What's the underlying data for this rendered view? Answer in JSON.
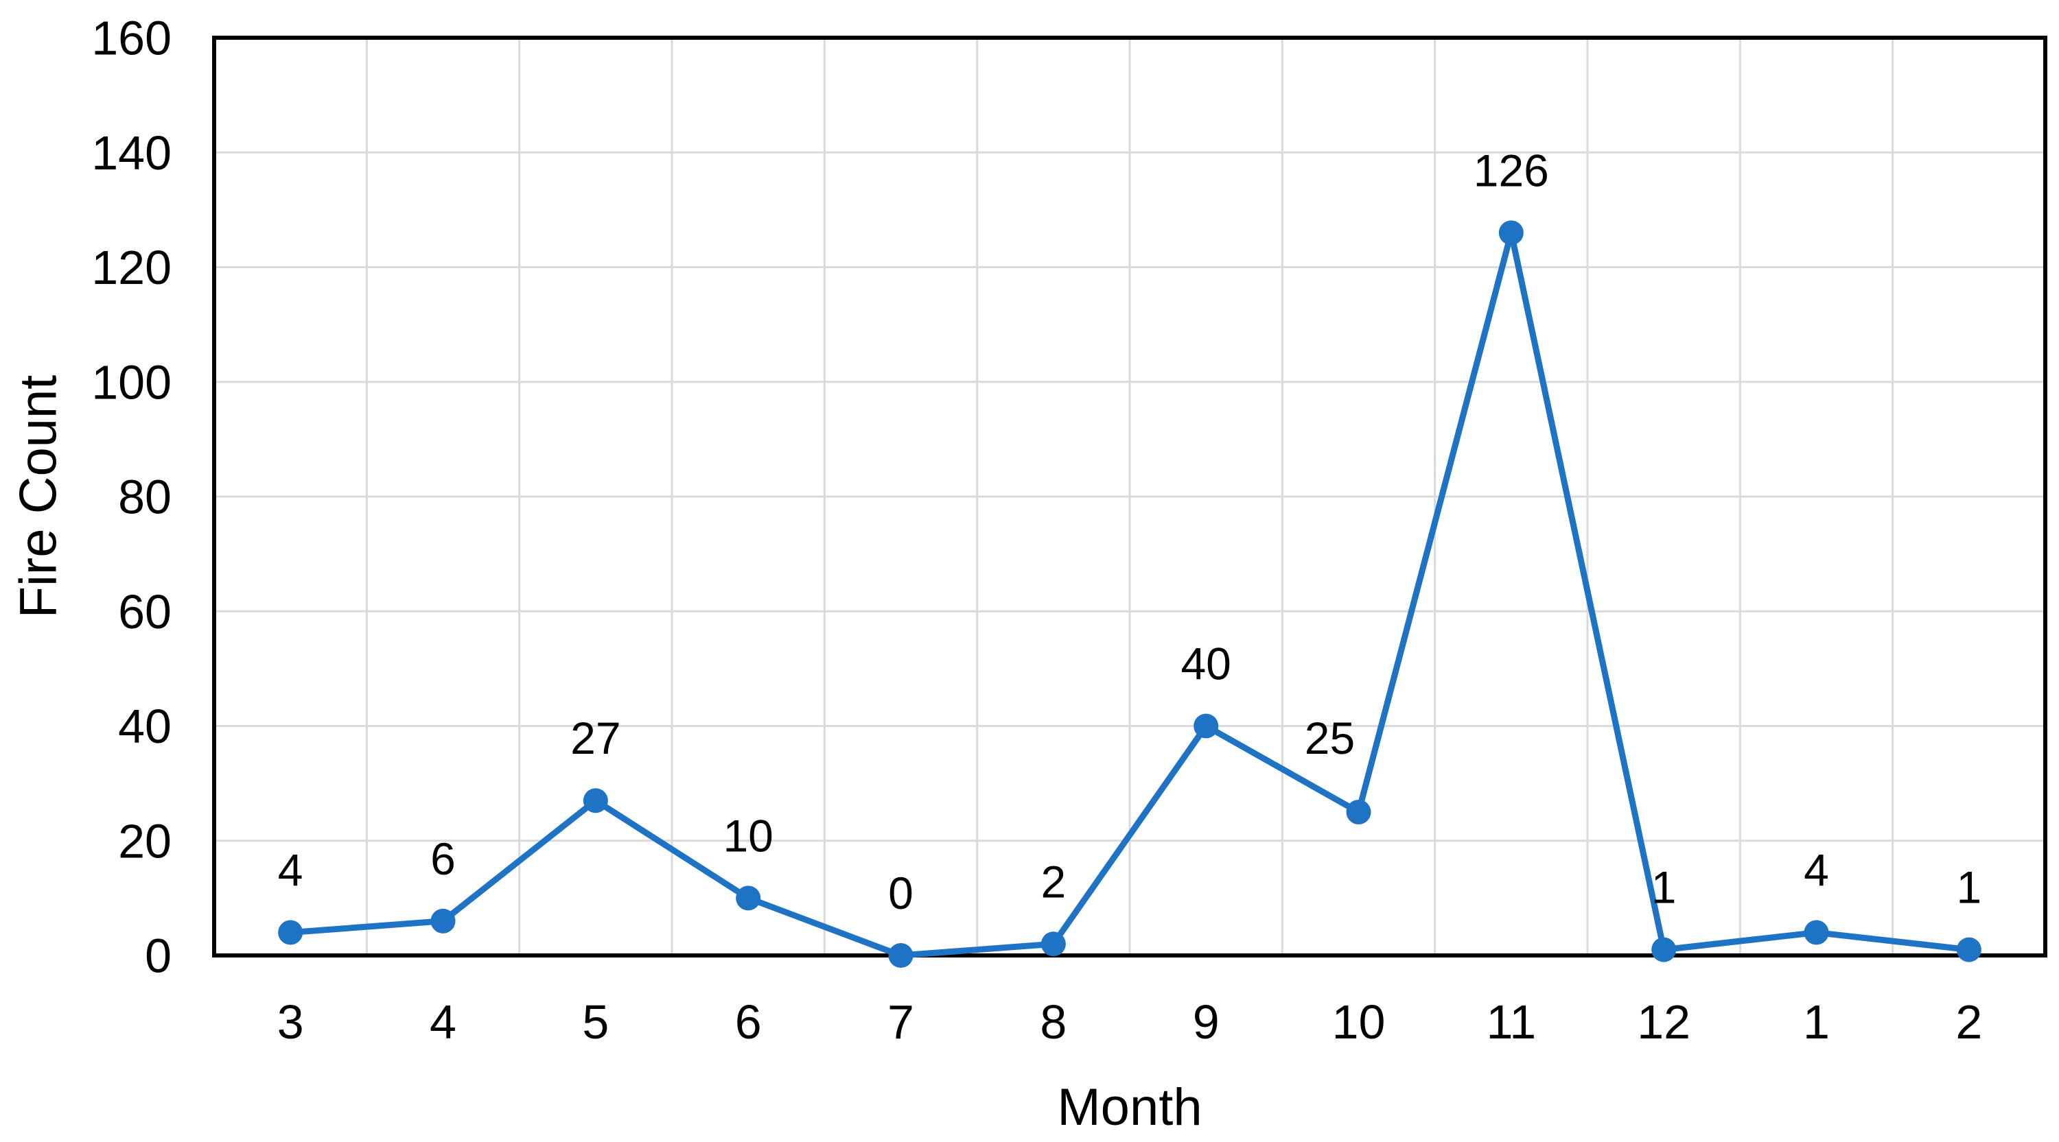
{
  "chart_data": {
    "type": "line",
    "title": "",
    "categories": [
      "3",
      "4",
      "5",
      "6",
      "7",
      "8",
      "9",
      "10",
      "11",
      "12",
      "1",
      "2"
    ],
    "series": [
      {
        "name": "Fire Count",
        "values": [
          4,
          6,
          27,
          10,
          0,
          2,
          40,
          25,
          126,
          1,
          4,
          1
        ]
      }
    ],
    "data_labels": [
      "4",
      "6",
      "27",
      "10",
      "0",
      "2",
      "40",
      "25",
      "126",
      "1",
      "4",
      "1"
    ],
    "xlabel": "Month",
    "ylabel": "Fire Count",
    "ylim": [
      0,
      160
    ],
    "ytick_interval": 20,
    "ytick_labels": [
      "0",
      "20",
      "40",
      "60",
      "80",
      "100",
      "120",
      "140",
      "160"
    ],
    "grid": {
      "horizontal": true,
      "vertical": true
    },
    "legend": "none",
    "marker": "circle",
    "label_position": "above",
    "label_offsets": {
      "7": [
        -42,
        -17
      ]
    },
    "colors": {
      "line": "#1F73C4",
      "marker": "#1F73C4",
      "grid": "#DADADA",
      "axis": "#000000",
      "text": "#000000",
      "background": "#FFFFFF"
    }
  }
}
